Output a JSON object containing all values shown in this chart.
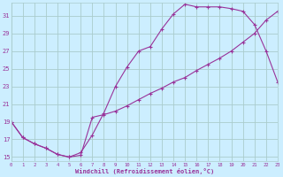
{
  "xlabel": "Windchill (Refroidissement éolien,°C)",
  "bg_color": "#cceeff",
  "grid_color": "#aacccc",
  "line_color": "#993399",
  "x_ticks": [
    0,
    1,
    2,
    3,
    4,
    5,
    6,
    7,
    8,
    9,
    10,
    11,
    12,
    13,
    14,
    15,
    16,
    17,
    18,
    19,
    20,
    21,
    22,
    23
  ],
  "y_ticks": [
    15,
    17,
    19,
    21,
    23,
    25,
    27,
    29,
    31
  ],
  "xlim": [
    0,
    23
  ],
  "ylim": [
    14.5,
    32.5
  ],
  "curve1_x": [
    0,
    1,
    2,
    3,
    4,
    5,
    6,
    7,
    8,
    9,
    10,
    11,
    12,
    13,
    14,
    15,
    16,
    17,
    18,
    19,
    20,
    21,
    22,
    23
  ],
  "curve1_y": [
    19.0,
    17.2,
    16.5,
    16.0,
    15.3,
    15.0,
    15.2,
    19.5,
    19.8,
    20.2,
    20.8,
    21.5,
    22.2,
    22.8,
    23.5,
    24.0,
    24.8,
    25.5,
    26.2,
    27.0,
    28.0,
    29.0,
    30.5,
    31.5
  ],
  "curve2_x": [
    0,
    1,
    2,
    3,
    4,
    5,
    6,
    7,
    8,
    9,
    10,
    11,
    12,
    13,
    14,
    15,
    16,
    17,
    18,
    19,
    20,
    21,
    22,
    23
  ],
  "curve2_y": [
    19.0,
    17.2,
    16.5,
    16.0,
    15.3,
    15.0,
    15.5,
    17.5,
    20.0,
    23.0,
    25.2,
    27.0,
    27.5,
    29.5,
    31.2,
    32.3,
    32.0,
    32.0,
    32.0,
    31.8,
    31.5,
    30.0,
    27.0,
    23.5
  ]
}
